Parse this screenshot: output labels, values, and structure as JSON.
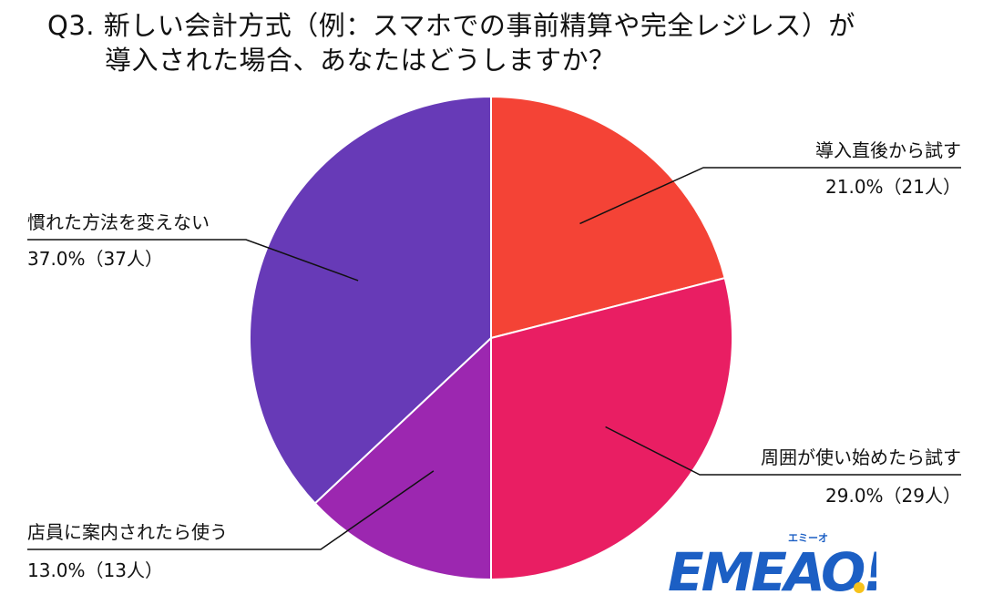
{
  "title": {
    "line1": "Q3. 新しい会計方式（例：スマホでの事前精算や完全レジレス）が",
    "line2": "導入された場合、あなたはどうしますか？"
  },
  "logo": {
    "text": "EMEAO!",
    "kana": "エミーオ",
    "colors": {
      "main": "#1c5fc4",
      "accent": "#f7c21b"
    }
  },
  "chart_data": {
    "type": "pie",
    "start_angle_deg": 0,
    "direction": "clockwise",
    "slices": [
      {
        "label": "導入直後から試す",
        "value": 21.0,
        "count": 21,
        "value_text": "21.0%（21人）",
        "color": "#f44336"
      },
      {
        "label": "周囲が使い始めたら試す",
        "value": 29.0,
        "count": 29,
        "value_text": "29.0%（29人）",
        "color": "#e91e63"
      },
      {
        "label": "店員に案内されたら使う",
        "value": 13.0,
        "count": 13,
        "value_text": "13.0%（13人）",
        "color": "#9c27b0"
      },
      {
        "label": "慣れた方法を変えない",
        "value": 37.0,
        "count": 37,
        "value_text": "37.0%（37人）",
        "color": "#673ab7"
      }
    ]
  }
}
